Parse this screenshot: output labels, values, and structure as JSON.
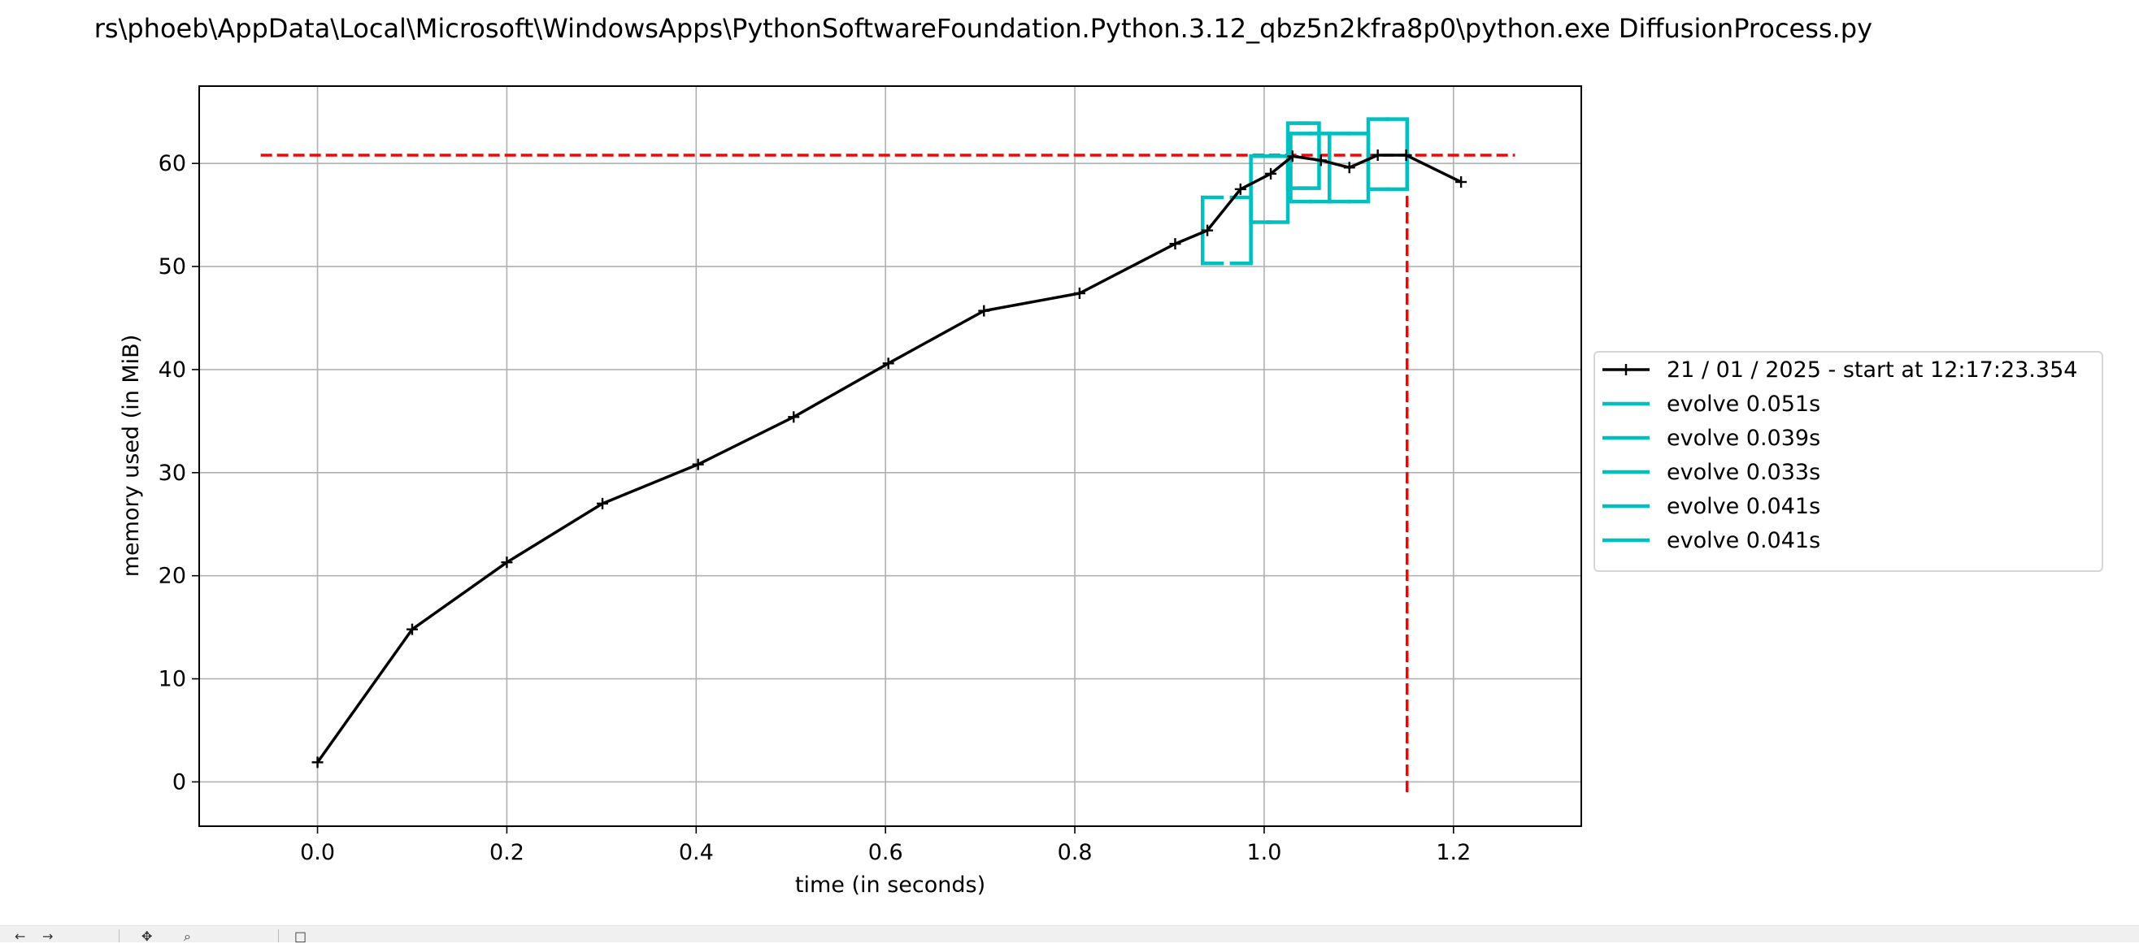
{
  "window": {
    "title": "rs\\phoeb\\AppData\\Local\\Microsoft\\WindowsApps\\PythonSoftwareFoundation.Python.3.12_qbz5n2kfra8p0\\python.exe DiffusionProcess.py"
  },
  "toolbar": {
    "icons": [
      "back-arrow-icon",
      "forward-arrow-icon",
      "pan-icon",
      "zoom-icon",
      "save-icon"
    ]
  },
  "chart_data": {
    "type": "line",
    "title": "rs\\phoeb\\AppData\\Local\\Microsoft\\WindowsApps\\PythonSoftwareFoundation.Python.3.12_qbz5n2kfra8p0\\python.exe DiffusionProcess.py",
    "xlabel": "time (in seconds)",
    "ylabel": "memory used (in MiB)",
    "xlim": [
      -0.125,
      1.335
    ],
    "ylim": [
      -4.3,
      67.5
    ],
    "xticks": [
      0.0,
      0.2,
      0.4,
      0.6,
      0.8,
      1.0,
      1.2
    ],
    "xtick_labels": [
      "0.0",
      "0.2",
      "0.4",
      "0.6",
      "0.8",
      "1.0",
      "1.2"
    ],
    "yticks": [
      0,
      10,
      20,
      30,
      40,
      50,
      60
    ],
    "ytick_labels": [
      "0",
      "10",
      "20",
      "30",
      "40",
      "50",
      "60"
    ],
    "grid": true,
    "legend_position": "center-right-outside",
    "memory_series": {
      "name": "21 / 01 / 2025 - start at 12:17:23.354",
      "color": "#000000",
      "x": [
        0.0,
        0.1,
        0.2,
        0.301,
        0.402,
        0.503,
        0.603,
        0.704,
        0.805,
        0.906,
        0.94,
        0.975,
        1.007,
        1.03,
        1.06,
        1.09,
        1.12,
        1.15,
        1.208
      ],
      "y": [
        1.9,
        14.8,
        21.3,
        27.0,
        30.8,
        35.4,
        40.6,
        45.7,
        47.4,
        52.2,
        53.5,
        57.5,
        59.0,
        60.7,
        60.3,
        59.6,
        60.8,
        60.8,
        58.2
      ]
    },
    "function_brackets": [
      {
        "name": "evolve 0.051s",
        "color": "#00bfbf",
        "x_start": 0.935,
        "x_end": 0.986,
        "y_min": 50.3,
        "y_max": 56.7
      },
      {
        "name": "evolve 0.039s",
        "color": "#00bfbf",
        "x_start": 0.986,
        "x_end": 1.025,
        "y_min": 54.3,
        "y_max": 60.7
      },
      {
        "name": "evolve 0.033s",
        "color": "#00bfbf",
        "x_start": 1.025,
        "x_end": 1.058,
        "y_min": 57.6,
        "y_max": 63.9
      },
      {
        "name": "evolve 0.041s",
        "color": "#00bfbf",
        "x_start": 1.028,
        "x_end": 1.069,
        "y_min": 56.3,
        "y_max": 62.9
      },
      {
        "name": "evolve 0.041s",
        "color": "#00bfbf",
        "x_start": 1.069,
        "x_end": 1.11,
        "y_min": 56.3,
        "y_max": 62.9
      },
      {
        "name": "evolve 0.041s",
        "color": "#00bfbf",
        "x_start": 1.11,
        "x_end": 1.151,
        "y_min": 57.5,
        "y_max": 64.3
      }
    ],
    "peak_marker": {
      "color": "#ff0000",
      "y": 60.8,
      "x": 1.151
    },
    "legend": [
      {
        "label": "21 / 01 / 2025 - start at 12:17:23.354",
        "color": "#000000",
        "marker": "+"
      },
      {
        "label": "evolve 0.051s",
        "color": "#00bfbf",
        "marker": ""
      },
      {
        "label": "evolve 0.039s",
        "color": "#00bfbf",
        "marker": ""
      },
      {
        "label": "evolve 0.033s",
        "color": "#00bfbf",
        "marker": ""
      },
      {
        "label": "evolve 0.041s",
        "color": "#00bfbf",
        "marker": ""
      },
      {
        "label": "evolve 0.041s",
        "color": "#00bfbf",
        "marker": ""
      }
    ]
  }
}
